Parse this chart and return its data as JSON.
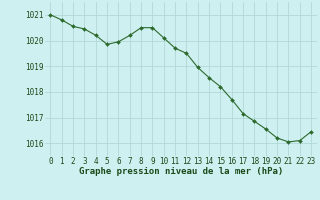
{
  "x": [
    0,
    1,
    2,
    3,
    4,
    5,
    6,
    7,
    8,
    9,
    10,
    11,
    12,
    13,
    14,
    15,
    16,
    17,
    18,
    19,
    20,
    21,
    22,
    23
  ],
  "y": [
    1021.0,
    1020.8,
    1020.55,
    1020.45,
    1020.2,
    1019.85,
    1019.95,
    1020.2,
    1020.5,
    1020.5,
    1020.1,
    1019.7,
    1019.5,
    1018.95,
    1018.55,
    1018.2,
    1017.7,
    1017.15,
    1016.85,
    1016.55,
    1016.2,
    1016.05,
    1016.1,
    1016.45
  ],
  "line_color": "#2d6a2d",
  "marker": "D",
  "markersize": 2.0,
  "linewidth": 0.8,
  "bg_color": "#cff0f0",
  "grid_color": "#b0d8d8",
  "xlabel": "Graphe pression niveau de la mer (hPa)",
  "xlabel_fontsize": 6.5,
  "xlabel_color": "#1a4a1a",
  "tick_fontsize": 5.5,
  "tick_color": "#1a4a1a",
  "ylim": [
    1015.5,
    1021.5
  ],
  "xlim": [
    -0.5,
    23.5
  ],
  "yticks": [
    1016,
    1017,
    1018,
    1019,
    1020,
    1021
  ],
  "xticks": [
    0,
    1,
    2,
    3,
    4,
    5,
    6,
    7,
    8,
    9,
    10,
    11,
    12,
    13,
    14,
    15,
    16,
    17,
    18,
    19,
    20,
    21,
    22,
    23
  ]
}
